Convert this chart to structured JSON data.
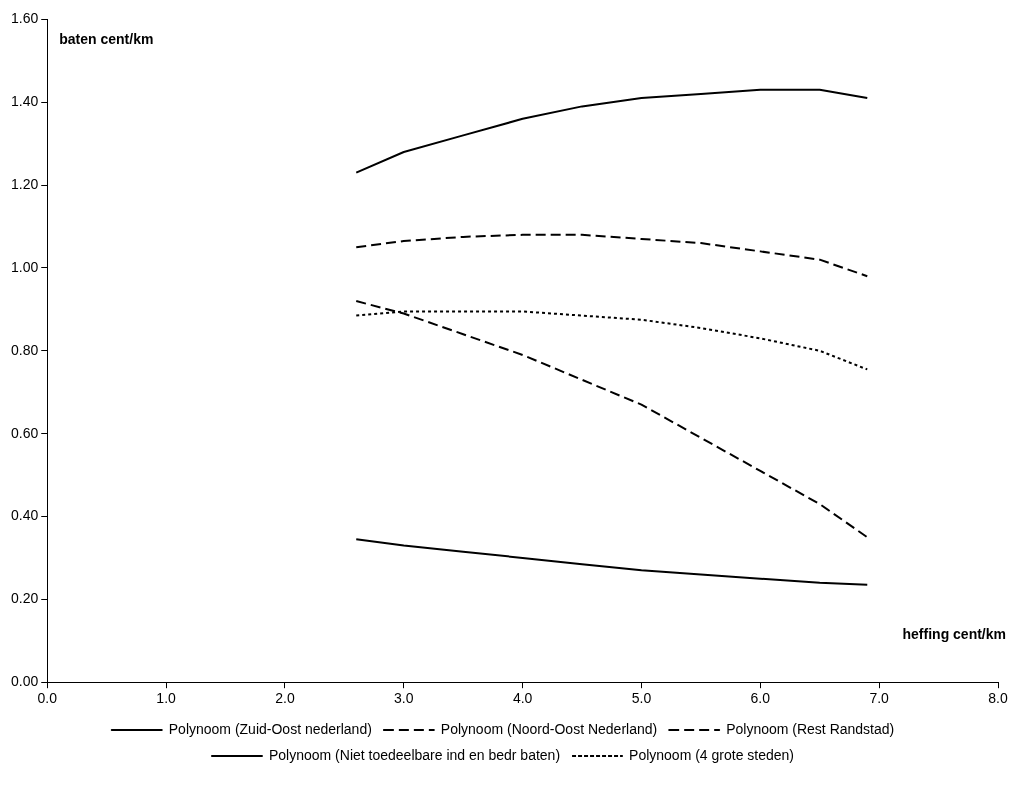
{
  "chart_data": {
    "type": "line",
    "xlabel": "heffing cent/km",
    "ylabel": "baten cent/km",
    "xlim": [
      0,
      8
    ],
    "xticks": [
      {
        "value": 0,
        "label": "0.0"
      },
      {
        "value": 1,
        "label": "1.0"
      },
      {
        "value": 2,
        "label": "2.0"
      },
      {
        "value": 3,
        "label": "3.0"
      },
      {
        "value": 4,
        "label": "4.0"
      },
      {
        "value": 5,
        "label": "5.0"
      },
      {
        "value": 6,
        "label": "6.0"
      },
      {
        "value": 7,
        "label": "7.0"
      },
      {
        "value": 8,
        "label": "8.0"
      }
    ],
    "ylim": [
      0,
      1.6
    ],
    "yticks": [
      {
        "value": 0,
        "label": "0.00"
      },
      {
        "value": 0.2,
        "label": "0.20"
      },
      {
        "value": 0.4,
        "label": "0.40"
      },
      {
        "value": 0.6,
        "label": "0.60"
      },
      {
        "value": 0.8,
        "label": "0.80"
      },
      {
        "value": 1,
        "label": "1.00"
      },
      {
        "value": 1.2,
        "label": "1.20"
      },
      {
        "value": 1.4,
        "label": "1.40"
      },
      {
        "value": 1.6,
        "label": "1.60"
      }
    ],
    "x": [
      2.6,
      3.0,
      3.5,
      4.0,
      4.5,
      5.0,
      5.5,
      6.0,
      6.5,
      6.9
    ],
    "series": [
      {
        "name": "Polynoom (Zuid-Oost nederland)",
        "color": "#000000",
        "line_style": "solid",
        "values": [
          1.23,
          1.28,
          1.32,
          1.36,
          1.39,
          1.41,
          1.42,
          1.43,
          1.43,
          1.41
        ]
      },
      {
        "name": "Polynoom (Noord-Oost Nederland)",
        "color": "#000000",
        "line_style": "dashed",
        "values": [
          1.05,
          1.065,
          1.075,
          1.08,
          1.08,
          1.07,
          1.06,
          1.04,
          1.02,
          0.98
        ]
      },
      {
        "name": "Polynoom (Rest Randstad)",
        "color": "#000000",
        "line_style": "dashed",
        "values": [
          0.92,
          0.89,
          0.84,
          0.79,
          0.73,
          0.67,
          0.59,
          0.51,
          0.43,
          0.35
        ]
      },
      {
        "name": "Polynoom (Niet toedeelbare ind en bedr baten)",
        "color": "#000000",
        "line_style": "solid",
        "values": [
          0.345,
          0.33,
          0.315,
          0.3,
          0.285,
          0.27,
          0.26,
          0.25,
          0.24,
          0.235
        ]
      },
      {
        "name": "Polynoom (4 grote steden)",
        "color": "#000000",
        "line_style": "dotted",
        "values": [
          0.885,
          0.895,
          0.895,
          0.895,
          0.885,
          0.875,
          0.855,
          0.83,
          0.8,
          0.755
        ]
      }
    ],
    "grid": false,
    "legend": "bottom",
    "marker": "none"
  }
}
